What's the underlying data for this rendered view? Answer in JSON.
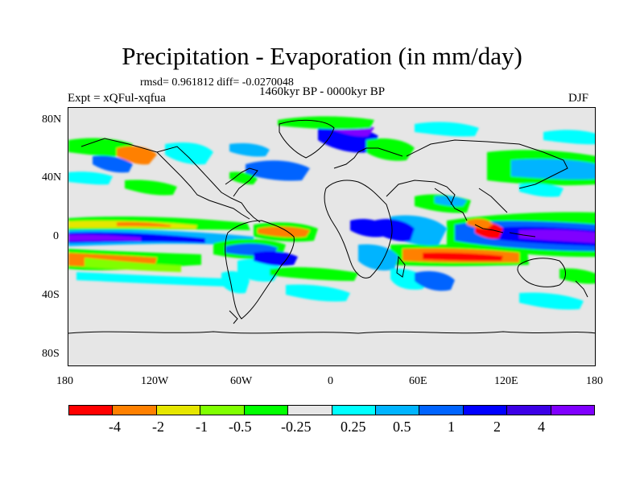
{
  "plot": {
    "title": "Precipitation - Evaporation (in mm/day)",
    "stats": "rmsd= 0.961812 diff= -0.0270048",
    "period": "1460kyr BP - 0000kyr BP",
    "experiment": "Expt = xQFul-xqfua",
    "season": "DJF"
  },
  "axes": {
    "y_ticks": [
      "80N",
      "40N",
      "0",
      "40S",
      "80S"
    ],
    "x_ticks": [
      "180",
      "120W",
      "60W",
      "0",
      "60E",
      "120E",
      "180"
    ]
  },
  "colorbar": {
    "colors": [
      "#ff0000",
      "#ff8000",
      "#e6e600",
      "#80ff00",
      "#00ff00",
      "#e6e6e6",
      "#00ffff",
      "#00b4ff",
      "#0064ff",
      "#0000ff",
      "#3c00e6",
      "#8000ff"
    ],
    "labels": [
      "-4",
      "-2",
      "-1",
      "-0.5",
      "-0.25",
      "0.25",
      "0.5",
      "1",
      "2",
      "4"
    ]
  }
}
